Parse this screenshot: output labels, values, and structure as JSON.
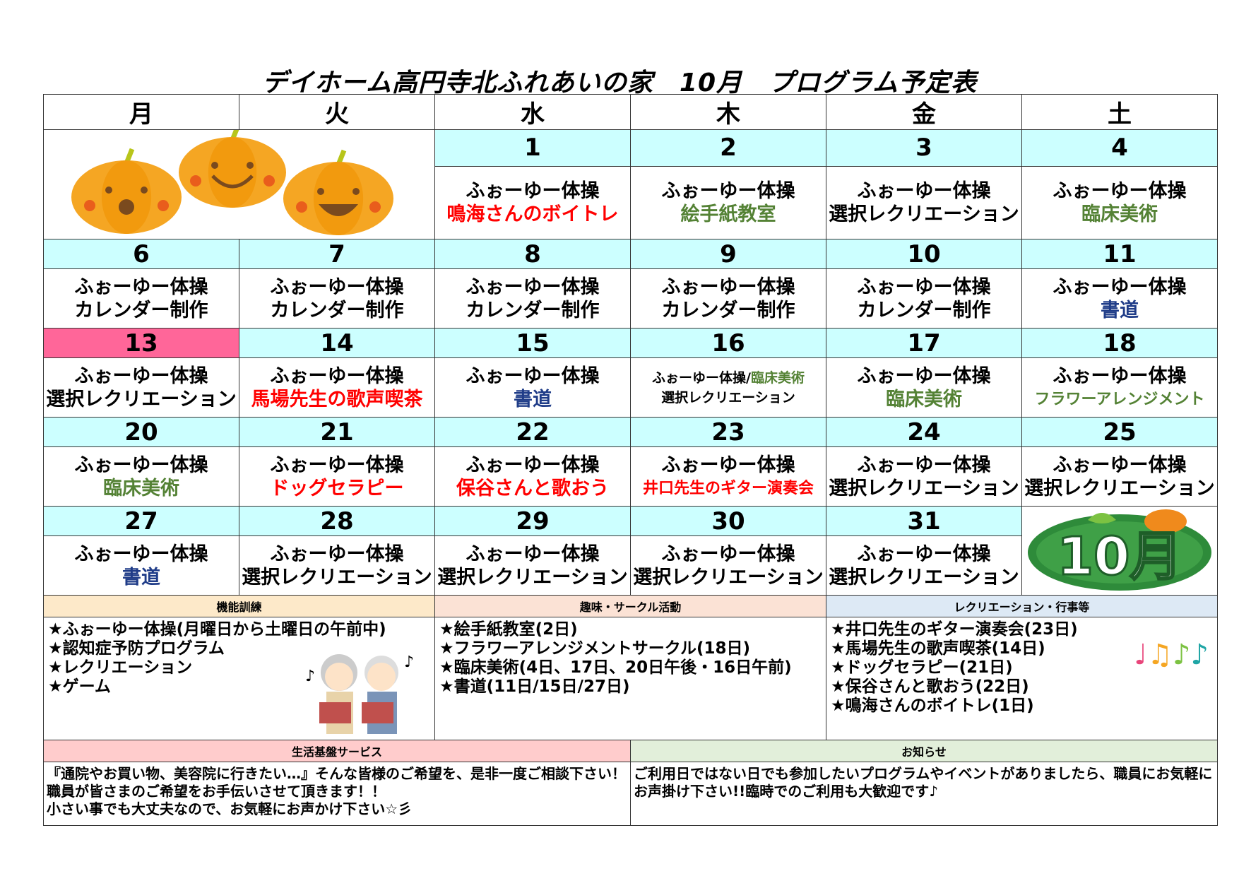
{
  "title": "デイホーム高円寺北ふれあいの家　10月　プログラム予定表",
  "weekdays": [
    "月",
    "火",
    "水",
    "木",
    "金",
    "土"
  ],
  "colors": {
    "date_bg": "#ccffff",
    "holiday_bg": "#ff6699",
    "red": "#ff0000",
    "green": "#548235",
    "navy": "#1f3c88",
    "black": "#000000"
  },
  "weeks": [
    [
      null,
      null,
      {
        "date": "1",
        "line1": "ふぉーゆー体操",
        "line2": "鳴海さんのボイトレ",
        "color": "red"
      },
      {
        "date": "2",
        "line1": "ふぉーゆー体操",
        "line2": "絵手紙教室",
        "color": "green"
      },
      {
        "date": "3",
        "line1": "ふぉーゆー体操",
        "line2": "選択レクリエーション",
        "color": "black"
      },
      {
        "date": "4",
        "line1": "ふぉーゆー体操",
        "line2": "臨床美術",
        "color": "green"
      }
    ],
    [
      {
        "date": "6",
        "line1": "ふぉーゆー体操",
        "line2": "カレンダー制作",
        "color": "black"
      },
      {
        "date": "7",
        "line1": "ふぉーゆー体操",
        "line2": "カレンダー制作",
        "color": "black"
      },
      {
        "date": "8",
        "line1": "ふぉーゆー体操",
        "line2": "カレンダー制作",
        "color": "black"
      },
      {
        "date": "9",
        "line1": "ふぉーゆー体操",
        "line2": "カレンダー制作",
        "color": "black"
      },
      {
        "date": "10",
        "line1": "ふぉーゆー体操",
        "line2": "カレンダー制作",
        "color": "black"
      },
      {
        "date": "11",
        "line1": "ふぉーゆー体操",
        "line2": "書道",
        "color": "navy"
      }
    ],
    [
      {
        "date": "13",
        "line1": "ふぉーゆー体操",
        "line2": "選択レクリエーション",
        "color": "black",
        "holiday": true
      },
      {
        "date": "14",
        "line1": "ふぉーゆー体操",
        "line2": "馬場先生の歌声喫茶",
        "color": "red"
      },
      {
        "date": "15",
        "line1": "ふぉーゆー体操",
        "line2": "書道",
        "color": "navy"
      },
      {
        "date": "16",
        "line1": "ふぉーゆー体操/",
        "line1b": "臨床美術",
        "line2": "選択レクリエーション",
        "color": "black",
        "small": true
      },
      {
        "date": "17",
        "line1": "ふぉーゆー体操",
        "line2": "臨床美術",
        "color": "green"
      },
      {
        "date": "18",
        "line1": "ふぉーゆー体操",
        "line2": "フラワーアレンジメント",
        "color": "green",
        "small2": true
      }
    ],
    [
      {
        "date": "20",
        "line1": "ふぉーゆー体操",
        "line2": "臨床美術",
        "color": "green"
      },
      {
        "date": "21",
        "line1": "ふぉーゆー体操",
        "line2": "ドッグセラピー",
        "color": "red"
      },
      {
        "date": "22",
        "line1": "ふぉーゆー体操",
        "line2": "保谷さんと歌おう",
        "color": "red"
      },
      {
        "date": "23",
        "line1": "ふぉーゆー体操",
        "line2": "井口先生のギター演奏会",
        "color": "red",
        "small2": true
      },
      {
        "date": "24",
        "line1": "ふぉーゆー体操",
        "line2": "選択レクリエーション",
        "color": "black"
      },
      {
        "date": "25",
        "line1": "ふぉーゆー体操",
        "line2": "選択レクリエーション",
        "color": "black"
      }
    ],
    [
      {
        "date": "27",
        "line1": "ふぉーゆー体操",
        "line2": "書道",
        "color": "navy"
      },
      {
        "date": "28",
        "line1": "ふぉーゆー体操",
        "line2": "選択レクリエーション",
        "color": "black"
      },
      {
        "date": "29",
        "line1": "ふぉーゆー体操",
        "line2": "選択レクリエーション",
        "color": "black"
      },
      {
        "date": "30",
        "line1": "ふぉーゆー体操",
        "line2": "選択レクリエーション",
        "color": "black"
      },
      {
        "date": "31",
        "line1": "ふぉーゆー体操",
        "line2": "選択レクリエーション",
        "color": "black"
      },
      null
    ]
  ],
  "month_badge": "10月",
  "sections": [
    {
      "title": "機能訓練",
      "bg": "#fde9c9",
      "items": [
        "★ふぉーゆー体操(月曜日から土曜日の午前中)",
        "★認知症予防プログラム",
        "★レクリエーション",
        "★ゲーム"
      ]
    },
    {
      "title": "趣味・サークル活動",
      "bg": "#fbe2d5",
      "items": [
        "★絵手紙教室(2日)",
        "★フラワーアレンジメントサークル(18日)",
        "★臨床美術(4日、17日、20日午後・16日午前)",
        "★書道(11日/15日/27日)"
      ]
    },
    {
      "title": "レクリエーション・行事等",
      "bg": "#dde9f5",
      "items": [
        "★井口先生のギター演奏会(23日)",
        "★馬場先生の歌声喫茶(14日)",
        "★ドッグセラピー(21日)",
        "★保谷さんと歌おう(22日)",
        "★鳴海さんのボイトレ(1日)"
      ]
    }
  ],
  "notices": [
    {
      "title": "生活基盤サービス",
      "bg": "#ffcccc",
      "text": "『通院やお買い物、美容院に行きたい…』そんな皆様のご希望を、是非一度ご相談下さい！職員が皆さまのご希望をお手伝いさせて頂きます！！\n小さい事でも大丈夫なので、お気軽にお声かけ下さい☆彡"
    },
    {
      "title": "お知らせ",
      "bg": "#e2efda",
      "text": "ご利用日ではない日でも参加したいプログラムやイベントがありましたら、職員にお気軽にお声掛け下さい!!臨時でのご利用も大歓迎です♪"
    }
  ]
}
